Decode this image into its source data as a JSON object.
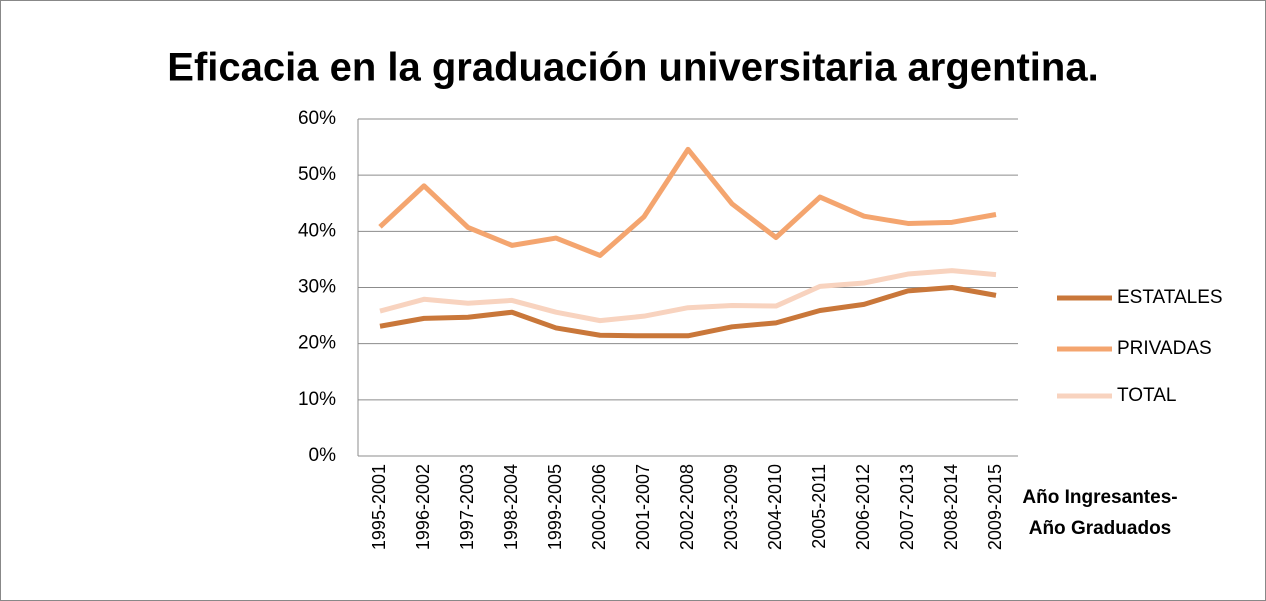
{
  "chart_data": {
    "type": "line",
    "title": "Eficacia en la graduación universitaria argentina.",
    "x_label": "Año Ingresantes-Año Graduados",
    "categories": [
      "1995-2001",
      "1996-2002",
      "1997-2003",
      "1998-2004",
      "1999-2005",
      "2000-2006",
      "2001-2007",
      "2002-2008",
      "2003-2009",
      "2004-2010",
      "2005-2011",
      "2006-2012",
      "2007-2013",
      "2008-2014",
      "2009-2015"
    ],
    "series": [
      {
        "name": "ESTATALES",
        "color": "#c9773a",
        "values": [
          23.1,
          24.5,
          24.7,
          25.6,
          22.8,
          21.5,
          21.4,
          21.4,
          23.0,
          23.7,
          25.9,
          27.0,
          29.4,
          30.0,
          28.6
        ]
      },
      {
        "name": "PRIVADAS",
        "color": "#f4a56f",
        "values": [
          40.8,
          48.1,
          40.7,
          37.5,
          38.8,
          35.7,
          42.6,
          54.6,
          44.9,
          38.9,
          46.1,
          42.7,
          41.4,
          41.6,
          43.0
        ]
      },
      {
        "name": "TOTAL",
        "color": "#f8d3bf",
        "values": [
          25.8,
          27.9,
          27.2,
          27.7,
          25.6,
          24.1,
          24.9,
          26.4,
          26.8,
          26.7,
          30.2,
          30.8,
          32.4,
          33.0,
          32.3
        ]
      }
    ],
    "ylim": [
      0,
      60
    ],
    "yticks": [
      {
        "value": 0,
        "label": "0%"
      },
      {
        "value": 10,
        "label": "10%"
      },
      {
        "value": 20,
        "label": "20%"
      },
      {
        "value": 30,
        "label": "30%"
      },
      {
        "value": 40,
        "label": "40%"
      },
      {
        "value": 50,
        "label": "50%"
      },
      {
        "value": 60,
        "label": "60%"
      }
    ],
    "grid": true,
    "legend": "right"
  }
}
